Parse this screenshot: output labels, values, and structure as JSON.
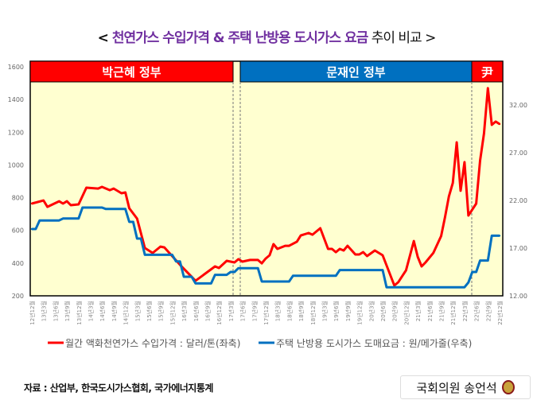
{
  "title": {
    "prefix": "< ",
    "highlight": "천연가스 수입가격 & 주택 난방용 도시가스 요금",
    "rest": " 추이 비교 >",
    "highlight_color": "#7030A0"
  },
  "periods": [
    {
      "label": "박근혜 정부",
      "color": "#FF0000",
      "start": "2012-12",
      "end": "2017-04"
    },
    {
      "label": "문재인 정부",
      "color": "#0070C0",
      "start": "2017-05",
      "end": "2022-04"
    },
    {
      "label": "尹",
      "color": "#FF0000",
      "start": "2022-05",
      "end": "2022-12"
    }
  ],
  "source": "자료 : 산업부, 한국도시가스협회, 국가에너지통계",
  "signature": "국회의원 송언석",
  "chart_data": {
    "type": "line",
    "background": "#FFFFD0",
    "x_tick_labels": [
      "12년12월",
      "13년3월",
      "13년6월",
      "13년9월",
      "13년12월",
      "14년3월",
      "14년6월",
      "14년9월",
      "14년12월",
      "15년3월",
      "15년6월",
      "15년9월",
      "15년12월",
      "16년3월",
      "16년6월",
      "16년9월",
      "16년12월",
      "17년3월",
      "17년6월",
      "17년9월",
      "17년12월",
      "18년3월",
      "18년6월",
      "18년9월",
      "18년12월",
      "19년3월",
      "19년6월",
      "19년9월",
      "19년12월",
      "20년3월",
      "20년6월",
      "20년9월",
      "20년12월",
      "21년3월",
      "21년6월",
      "21년9월",
      "21년12월",
      "22년3월",
      "22년6월",
      "22년9월",
      "22년12월"
    ],
    "y_left": {
      "range": [
        200,
        1600
      ],
      "ticks": [
        "200",
        "400",
        "600",
        "800",
        "1000",
        "1200",
        "1400",
        "1600"
      ]
    },
    "y_right": {
      "range": [
        12,
        36
      ],
      "ticks": [
        "12.00",
        "17.00",
        "22.00",
        "27.00",
        "32.00"
      ]
    },
    "legend_position": "bottom",
    "series": [
      {
        "name": "월간 액화천연가스 수입가격 : 달러/톤(좌축)",
        "axis": "left",
        "color": "#FF0000",
        "points": [
          [
            "2012-12",
            764
          ],
          [
            "2013-03",
            783
          ],
          [
            "2013-04",
            744
          ],
          [
            "2013-07",
            778
          ],
          [
            "2013-08",
            764
          ],
          [
            "2013-09",
            778
          ],
          [
            "2013-10",
            754
          ],
          [
            "2013-12",
            759
          ],
          [
            "2014-02",
            861
          ],
          [
            "2014-05",
            856
          ],
          [
            "2014-06",
            866
          ],
          [
            "2014-08",
            846
          ],
          [
            "2014-09",
            856
          ],
          [
            "2014-11",
            827
          ],
          [
            "2014-12",
            832
          ],
          [
            "2015-01",
            735
          ],
          [
            "2015-03",
            672
          ],
          [
            "2015-05",
            492
          ],
          [
            "2015-07",
            462
          ],
          [
            "2015-09",
            501
          ],
          [
            "2015-10",
            496
          ],
          [
            "2015-12",
            443
          ],
          [
            "2016-02",
            390
          ],
          [
            "2016-06",
            292
          ],
          [
            "2016-11",
            380
          ],
          [
            "2016-12",
            370
          ],
          [
            "2017-02",
            414
          ],
          [
            "2017-04",
            404
          ],
          [
            "2017-05",
            424
          ],
          [
            "2017-06",
            409
          ],
          [
            "2017-08",
            419
          ],
          [
            "2017-10",
            419
          ],
          [
            "2017-11",
            399
          ],
          [
            "2017-12",
            428
          ],
          [
            "2018-01",
            448
          ],
          [
            "2018-02",
            516
          ],
          [
            "2018-03",
            487
          ],
          [
            "2018-05",
            506
          ],
          [
            "2018-06",
            506
          ],
          [
            "2018-08",
            531
          ],
          [
            "2018-09",
            569
          ],
          [
            "2018-11",
            584
          ],
          [
            "2018-12",
            574
          ],
          [
            "2019-02",
            613
          ],
          [
            "2019-04",
            487
          ],
          [
            "2019-05",
            487
          ],
          [
            "2019-06",
            467
          ],
          [
            "2019-07",
            487
          ],
          [
            "2019-08",
            477
          ],
          [
            "2019-09",
            506
          ],
          [
            "2019-11",
            453
          ],
          [
            "2019-12",
            453
          ],
          [
            "2020-01",
            467
          ],
          [
            "2020-02",
            443
          ],
          [
            "2020-04",
            477
          ],
          [
            "2020-06",
            448
          ],
          [
            "2020-09",
            263
          ],
          [
            "2020-10",
            283
          ],
          [
            "2020-12",
            356
          ],
          [
            "2021-02",
            535
          ],
          [
            "2021-03",
            438
          ],
          [
            "2021-04",
            380
          ],
          [
            "2021-05",
            404
          ],
          [
            "2021-07",
            462
          ],
          [
            "2021-09",
            565
          ],
          [
            "2021-10",
            681
          ],
          [
            "2021-11",
            808
          ],
          [
            "2021-12",
            890
          ],
          [
            "2022-01",
            1138
          ],
          [
            "2022-02",
            842
          ],
          [
            "2022-03",
            1017
          ],
          [
            "2022-04",
            691
          ],
          [
            "2022-06",
            764
          ],
          [
            "2022-07",
            1027
          ],
          [
            "2022-08",
            1192
          ],
          [
            "2022-09",
            1469
          ],
          [
            "2022-10",
            1245
          ],
          [
            "2022-11",
            1265
          ],
          [
            "2022-12",
            1250
          ]
        ]
      },
      {
        "name": "주택 난방용 도시가스 도매요금 : 원/메가줄(우축)",
        "axis": "right",
        "color": "#0070C0",
        "points": [
          [
            "2012-12",
            19.0
          ],
          [
            "2013-01",
            19.0
          ],
          [
            "2013-02",
            19.9
          ],
          [
            "2013-07",
            19.9
          ],
          [
            "2013-08",
            20.1
          ],
          [
            "2013-12",
            20.1
          ],
          [
            "2014-01",
            21.25
          ],
          [
            "2014-06",
            21.25
          ],
          [
            "2014-07",
            21.1
          ],
          [
            "2014-12",
            21.1
          ],
          [
            "2015-01",
            19.75
          ],
          [
            "2015-02",
            19.75
          ],
          [
            "2015-03",
            18.0
          ],
          [
            "2015-04",
            18.0
          ],
          [
            "2015-05",
            16.3
          ],
          [
            "2015-12",
            16.3
          ],
          [
            "2016-01",
            15.6
          ],
          [
            "2016-02",
            15.6
          ],
          [
            "2016-03",
            14.0
          ],
          [
            "2016-05",
            14.0
          ],
          [
            "2016-06",
            13.3
          ],
          [
            "2016-10",
            13.3
          ],
          [
            "2016-11",
            14.2
          ],
          [
            "2017-02",
            14.2
          ],
          [
            "2017-03",
            14.5
          ],
          [
            "2017-04",
            14.5
          ],
          [
            "2017-05",
            14.9
          ],
          [
            "2017-10",
            14.9
          ],
          [
            "2017-11",
            13.5
          ],
          [
            "2018-06",
            13.5
          ],
          [
            "2018-07",
            14.1
          ],
          [
            "2019-06",
            14.1
          ],
          [
            "2019-07",
            14.7
          ],
          [
            "2020-06",
            14.7
          ],
          [
            "2020-07",
            12.9
          ],
          [
            "2022-03",
            12.9
          ],
          [
            "2022-04",
            13.4
          ],
          [
            "2022-05",
            14.5
          ],
          [
            "2022-06",
            14.5
          ],
          [
            "2022-07",
            15.7
          ],
          [
            "2022-09",
            15.7
          ],
          [
            "2022-10",
            18.3
          ],
          [
            "2022-12",
            18.3
          ]
        ]
      }
    ]
  }
}
